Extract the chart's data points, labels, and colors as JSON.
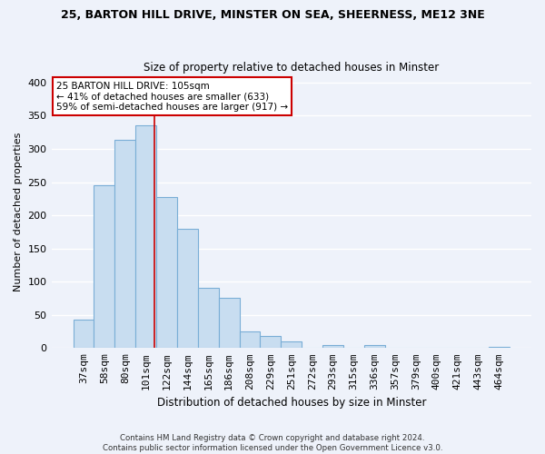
{
  "title1": "25, BARTON HILL DRIVE, MINSTER ON SEA, SHEERNESS, ME12 3NE",
  "title2": "Size of property relative to detached houses in Minster",
  "xlabel": "Distribution of detached houses by size in Minster",
  "ylabel": "Number of detached properties",
  "bar_labels": [
    "37sqm",
    "58sqm",
    "80sqm",
    "101sqm",
    "122sqm",
    "144sqm",
    "165sqm",
    "186sqm",
    "208sqm",
    "229sqm",
    "251sqm",
    "272sqm",
    "293sqm",
    "315sqm",
    "336sqm",
    "357sqm",
    "379sqm",
    "400sqm",
    "421sqm",
    "443sqm",
    "464sqm"
  ],
  "bar_values": [
    43,
    245,
    313,
    335,
    228,
    180,
    91,
    76,
    25,
    18,
    10,
    0,
    5,
    0,
    4,
    0,
    1,
    0,
    0,
    0,
    2
  ],
  "bar_color": "#c8ddf0",
  "bar_edge_color": "#7aaed6",
  "vline_x": 3.42,
  "vline_color": "#cc0000",
  "ylim": [
    0,
    410
  ],
  "yticks": [
    0,
    50,
    100,
    150,
    200,
    250,
    300,
    350,
    400
  ],
  "annotation_title": "25 BARTON HILL DRIVE: 105sqm",
  "annotation_line1": "← 41% of detached houses are smaller (633)",
  "annotation_line2": "59% of semi-detached houses are larger (917) →",
  "annotation_box_color": "#ffffff",
  "annotation_box_edge": "#cc0000",
  "footer1": "Contains HM Land Registry data © Crown copyright and database right 2024.",
  "footer2": "Contains public sector information licensed under the Open Government Licence v3.0.",
  "bg_color": "#eef2fa",
  "grid_color": "#d8e4f0"
}
